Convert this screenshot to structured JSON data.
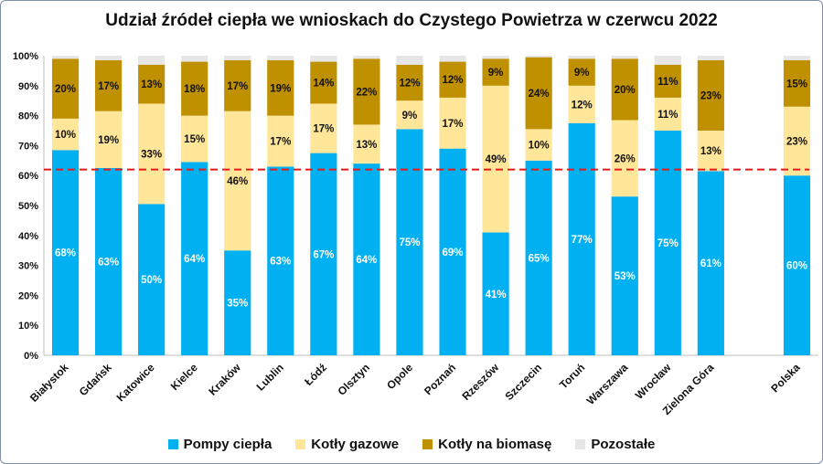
{
  "chart_data": {
    "type": "bar",
    "stacked": true,
    "title": "Udział źródeł ciepła we wnioskach do Czystego Powietrza w czerwcu 2022",
    "categories": [
      "Białystok",
      "Gdańsk",
      "Katowice",
      "Kielce",
      "Kraków",
      "Lublin",
      "Łódź",
      "Olsztyn",
      "Opole",
      "Poznań",
      "Rzeszów",
      "Szczecin",
      "Toruń",
      "Warszawa",
      "Wrocław",
      "Zielona Góra",
      "Polska"
    ],
    "series": [
      {
        "name": "Pompy ciepła",
        "color": "#00b0f0",
        "values": [
          68.5,
          62.5,
          50.5,
          64.5,
          35,
          63,
          67.5,
          64,
          75.5,
          69,
          41,
          65,
          77.5,
          53,
          75,
          61.5,
          60
        ],
        "labels": [
          "68%",
          "63%",
          "50%",
          "64%",
          "35%",
          "63%",
          "67%",
          "64%",
          "75%",
          "69%",
          "41%",
          "65%",
          "77%",
          "53%",
          "75%",
          "61%",
          "60%"
        ]
      },
      {
        "name": "Kotły gazowe",
        "color": "#ffe699",
        "values": [
          10.5,
          19,
          33.5,
          15.5,
          46.5,
          17,
          16.5,
          13,
          9.5,
          17,
          49,
          10.5,
          12.5,
          25.5,
          11,
          13.5,
          23
        ],
        "labels": [
          "10%",
          "19%",
          "33%",
          "15%",
          "46%",
          "17%",
          "17%",
          "13%",
          "9%",
          "17%",
          "49%",
          "10%",
          "12%",
          "26%",
          "11%",
          "13%",
          "23%"
        ]
      },
      {
        "name": "Kotły na biomasę",
        "color": "#bf9000",
        "values": [
          20,
          17,
          13,
          18,
          17,
          18.5,
          14,
          22,
          12,
          12,
          9,
          24,
          9,
          20.5,
          11,
          23.5,
          15.5
        ],
        "labels": [
          "20%",
          "17%",
          "13%",
          "18%",
          "17%",
          "19%",
          "14%",
          "22%",
          "12%",
          "12%",
          "9%",
          "24%",
          "9%",
          "20%",
          "11%",
          "23%",
          "15%"
        ]
      },
      {
        "name": "Pozostałe",
        "color": "#e7e6e6",
        "values": [
          1,
          1.5,
          3,
          2,
          1.5,
          1.5,
          2,
          1,
          3,
          2,
          1,
          0.5,
          1,
          1,
          3,
          1.5,
          1.5
        ]
      }
    ],
    "ylim": [
      0,
      100
    ],
    "yticks": [
      "0%",
      "10%",
      "20%",
      "30%",
      "40%",
      "50%",
      "60%",
      "70%",
      "80%",
      "90%",
      "100%"
    ],
    "reference_line": {
      "value": 62,
      "style": "dashed",
      "color": "#e31a1c"
    },
    "legend_position": "bottom",
    "grid": false
  }
}
